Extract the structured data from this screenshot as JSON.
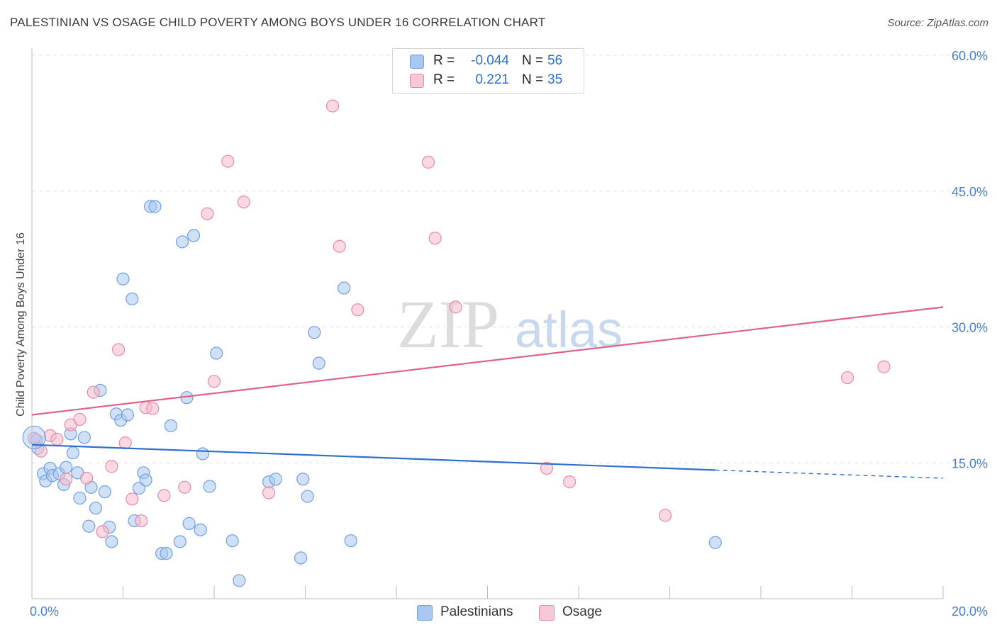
{
  "header": {
    "title": "PALESTINIAN VS OSAGE CHILD POVERTY AMONG BOYS UNDER 16 CORRELATION CHART",
    "source": "Source: ZipAtlas.com"
  },
  "watermark": {
    "zip": "ZIP",
    "atlas": "atlas"
  },
  "legend": {
    "rows": [
      {
        "r_label": "R =",
        "r_value": "-0.044",
        "n_label": "N =",
        "n_value": "56",
        "color": "#a9c8f0"
      },
      {
        "r_label": "R =",
        "r_value": "0.221",
        "n_label": "N =",
        "n_value": "35",
        "color": "#f7b9cc"
      }
    ]
  },
  "bottom_legend": [
    {
      "label": "Palestinians",
      "color": "#a9c8f0"
    },
    {
      "label": "Osage",
      "color": "#f7b9cc"
    }
  ],
  "chart_data": {
    "type": "scatter",
    "ylabel": "Child Poverty Among Boys Under 16",
    "xlim": [
      0,
      20
    ],
    "ylim": [
      0,
      60
    ],
    "x_tick_labels": [
      {
        "value": 0,
        "label": "0.0%"
      },
      {
        "value": 20,
        "label": "20.0%"
      }
    ],
    "y_tick_labels": [
      {
        "value": 15,
        "label": "15.0%"
      },
      {
        "value": 30,
        "label": "30.0%"
      },
      {
        "value": 45,
        "label": "45.0%"
      },
      {
        "value": 60,
        "label": "60.0%"
      }
    ],
    "grid": true,
    "series": [
      {
        "name": "Palestinians",
        "color": "#6fa0e6",
        "fill": "#a9c8f0",
        "trend": {
          "x0": 0,
          "y0": 17.0,
          "x1": 15,
          "y1": 14.2,
          "dashed_to_x": 20,
          "dashed_to_y": 13.3,
          "color": "#2f6fce"
        },
        "points": [
          [
            0.1,
            17.5
          ],
          [
            0.13,
            16.6
          ],
          [
            0.25,
            13.8
          ],
          [
            0.3,
            13.0
          ],
          [
            0.4,
            14.4
          ],
          [
            0.45,
            13.6
          ],
          [
            0.6,
            13.8
          ],
          [
            0.7,
            12.6
          ],
          [
            0.75,
            14.5
          ],
          [
            0.85,
            18.2
          ],
          [
            0.9,
            16.1
          ],
          [
            1.0,
            13.9
          ],
          [
            1.05,
            11.1
          ],
          [
            1.15,
            17.8
          ],
          [
            1.25,
            8.0
          ],
          [
            1.3,
            12.3
          ],
          [
            1.4,
            10.0
          ],
          [
            1.5,
            23.0
          ],
          [
            1.6,
            11.8
          ],
          [
            1.7,
            7.9
          ],
          [
            1.75,
            6.3
          ],
          [
            1.85,
            20.4
          ],
          [
            1.95,
            19.7
          ],
          [
            2.0,
            35.3
          ],
          [
            2.1,
            20.3
          ],
          [
            2.2,
            33.1
          ],
          [
            2.25,
            8.6
          ],
          [
            2.35,
            12.2
          ],
          [
            2.45,
            13.9
          ],
          [
            2.5,
            13.1
          ],
          [
            2.6,
            43.3
          ],
          [
            2.7,
            43.3
          ],
          [
            2.85,
            5.0
          ],
          [
            2.95,
            5.0
          ],
          [
            3.05,
            19.1
          ],
          [
            3.25,
            6.3
          ],
          [
            3.3,
            39.4
          ],
          [
            3.4,
            22.2
          ],
          [
            3.45,
            8.3
          ],
          [
            3.55,
            40.1
          ],
          [
            3.7,
            7.6
          ],
          [
            3.75,
            16.0
          ],
          [
            3.9,
            12.4
          ],
          [
            4.05,
            27.1
          ],
          [
            4.4,
            6.4
          ],
          [
            4.55,
            2.0
          ],
          [
            5.2,
            12.9
          ],
          [
            5.35,
            13.2
          ],
          [
            5.9,
            4.5
          ],
          [
            5.95,
            13.2
          ],
          [
            6.05,
            11.3
          ],
          [
            6.2,
            29.4
          ],
          [
            6.3,
            26.0
          ],
          [
            6.85,
            34.3
          ],
          [
            7.0,
            6.4
          ],
          [
            15.0,
            6.2
          ]
        ]
      },
      {
        "name": "Osage",
        "color": "#e98aa8",
        "fill": "#f7b9cc",
        "trend": {
          "x0": 0,
          "y0": 20.3,
          "x1": 20,
          "y1": 32.2,
          "color": "#e0628c"
        },
        "points": [
          [
            0.05,
            17.7
          ],
          [
            0.2,
            16.3
          ],
          [
            0.4,
            18.0
          ],
          [
            0.55,
            17.6
          ],
          [
            0.75,
            13.2
          ],
          [
            0.85,
            19.2
          ],
          [
            1.05,
            19.8
          ],
          [
            1.2,
            13.3
          ],
          [
            1.35,
            22.8
          ],
          [
            1.55,
            7.4
          ],
          [
            1.75,
            14.6
          ],
          [
            1.9,
            27.5
          ],
          [
            2.05,
            17.2
          ],
          [
            2.2,
            11.0
          ],
          [
            2.4,
            8.6
          ],
          [
            2.5,
            21.1
          ],
          [
            2.65,
            21.0
          ],
          [
            2.9,
            11.4
          ],
          [
            3.35,
            12.3
          ],
          [
            3.85,
            42.5
          ],
          [
            4.0,
            24.0
          ],
          [
            4.3,
            48.3
          ],
          [
            4.65,
            43.8
          ],
          [
            5.2,
            11.7
          ],
          [
            6.6,
            54.4
          ],
          [
            6.75,
            38.9
          ],
          [
            7.15,
            31.9
          ],
          [
            8.7,
            48.2
          ],
          [
            8.85,
            39.8
          ],
          [
            9.3,
            32.2
          ],
          [
            11.3,
            14.4
          ],
          [
            11.8,
            12.9
          ],
          [
            13.9,
            9.2
          ],
          [
            17.9,
            24.4
          ],
          [
            18.7,
            25.6
          ]
        ]
      }
    ]
  }
}
